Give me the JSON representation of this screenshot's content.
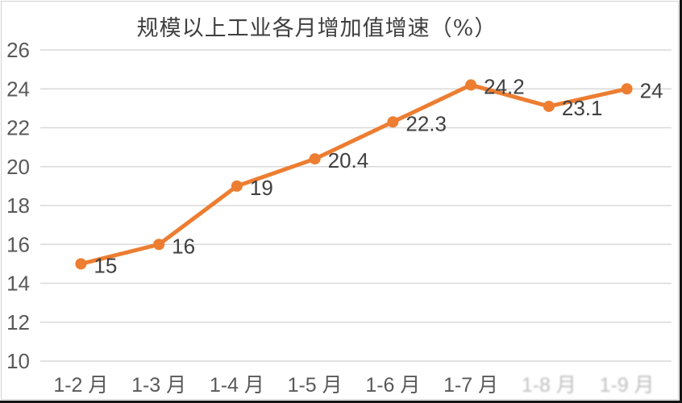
{
  "chart_data": {
    "type": "line",
    "title": "规模以上工业各月增加值增速（%）",
    "categories": [
      "1-2 月",
      "1-3 月",
      "1-4 月",
      "1-5 月",
      "1-6 月",
      "1-7 月",
      "1-8 月",
      "1-9 月"
    ],
    "series": [
      {
        "name": "规模以上工业各月增加值增速",
        "values": [
          15,
          16,
          19,
          20.4,
          22.3,
          24.2,
          23.1,
          24
        ],
        "data_labels": [
          "15",
          "16",
          "19",
          "20.4",
          "22.3",
          "24.2",
          "23.1",
          "24"
        ]
      }
    ],
    "xlabel": "",
    "ylabel": "",
    "ylim": [
      10,
      26
    ],
    "y_ticks": [
      10,
      12,
      14,
      16,
      18,
      20,
      22,
      24,
      26
    ],
    "grid": "horizontal",
    "legend": "none",
    "marker": "circle",
    "faded_label_indices": [
      6,
      7
    ],
    "colors": {
      "line": "#ED7D31",
      "gridline": "#D9D9D9",
      "axis_label": "#595959",
      "data_label": "#404040",
      "title": "#3F3F3F",
      "background": "#FFFFFF"
    }
  }
}
